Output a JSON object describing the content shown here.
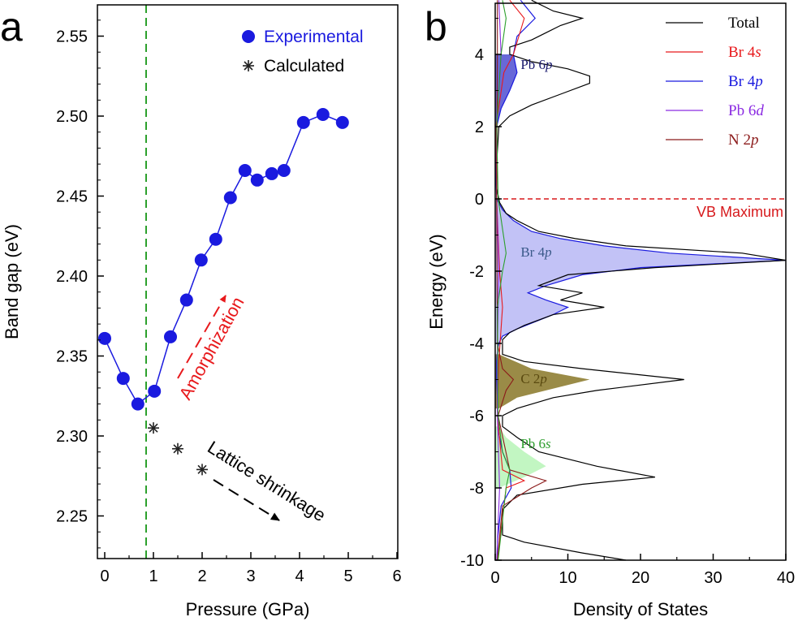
{
  "chart_data": [
    {
      "type": "scatter",
      "panel_label": "a",
      "xlabel": "Pressure (GPa)",
      "ylabel": "Band gap (eV)",
      "xlim": [
        0,
        6
      ],
      "ylim": [
        2.22,
        2.57
      ],
      "xticks": [
        "0",
        "1",
        "2",
        "3",
        "4",
        "5",
        "6"
      ],
      "yticks": [
        "2.25",
        "2.30",
        "2.35",
        "2.40",
        "2.45",
        "2.50",
        "2.55"
      ],
      "vertical_line_x": 0.85,
      "legend": "top-right",
      "series": [
        {
          "name": "Experimental",
          "color": "#1a1adf",
          "marker": "filled-circle",
          "connected": true,
          "x": [
            0.0,
            0.38,
            0.68,
            1.02,
            1.35,
            1.68,
            1.98,
            2.28,
            2.58,
            2.88,
            3.13,
            3.43,
            3.68,
            4.08,
            4.48,
            4.88
          ],
          "y": [
            2.361,
            2.336,
            2.32,
            2.328,
            2.362,
            2.385,
            2.41,
            2.423,
            2.449,
            2.466,
            2.46,
            2.464,
            2.466,
            2.496,
            2.501,
            2.496
          ]
        },
        {
          "name": "Calculated",
          "color": "#222222",
          "marker": "asterisk",
          "connected": false,
          "x": [
            1.0,
            1.5,
            2.0
          ],
          "y": [
            2.305,
            2.292,
            2.279
          ]
        }
      ],
      "annotations": [
        {
          "text": "Amorphization",
          "color": "#e8191c"
        },
        {
          "text": "Lattice shrinkage",
          "color": "#000000"
        }
      ]
    },
    {
      "type": "line",
      "panel_label": "b",
      "xlabel": "Density of States",
      "ylabel": "Energy (eV)",
      "xlim": [
        0,
        40
      ],
      "ylim": [
        -10,
        5.5
      ],
      "xticks": [
        "0",
        "10",
        "20",
        "30",
        "40"
      ],
      "yticks": [
        "4",
        "2",
        "0",
        "-2",
        "-4",
        "-6",
        "-8",
        "-10"
      ],
      "legend": "top-right",
      "fermi_line": {
        "y": 0,
        "label": "VB Maximum",
        "color": "#d7191c"
      },
      "legend_entries": [
        {
          "name": "Total",
          "main": "Total",
          "sub": "",
          "color": "#000000"
        },
        {
          "name": "Br 4s",
          "main": "Br 4",
          "sub": "s",
          "color": "#e8191c"
        },
        {
          "name": "Br 4p",
          "main": "Br 4",
          "sub": "p",
          "color": "#1a1adf"
        },
        {
          "name": "Pb 6d",
          "main": "Pb 6",
          "sub": "d",
          "color": "#8b2be2"
        },
        {
          "name": "N 2p",
          "main": "N 2",
          "sub": "p",
          "color": "#8b1a1a"
        }
      ],
      "region_labels": [
        {
          "name": "Pb 6p",
          "main": "Pb 6",
          "sub": "p",
          "color": "#1a1a6e",
          "x": 3.5,
          "y": 3.6
        },
        {
          "name": "Br 4p",
          "main": "Br 4",
          "sub": "p",
          "color": "#3b5a8a",
          "x": 3.5,
          "y": -1.6
        },
        {
          "name": "C 2p",
          "main": "C 2",
          "sub": "p",
          "color": "#5a4a10",
          "x": 3.5,
          "y": -5.1
        },
        {
          "name": "Pb 6s",
          "main": "Pb 6",
          "sub": "s",
          "color": "#2e9e2e",
          "x": 3.5,
          "y": -6.9
        }
      ],
      "series": [
        {
          "name": "Total",
          "color": "#000000",
          "energy": [
            -10,
            -9.8,
            -9.5,
            -9.3,
            -8.6,
            -8.2,
            -7.9,
            -7.7,
            -7.4,
            -7.0,
            -6.6,
            -6.3,
            -6.0,
            -5.8,
            -5.5,
            -5.3,
            -5.0,
            -4.7,
            -4.5,
            -4.3,
            -4.1,
            -3.9,
            -3.7,
            -3.5,
            -3.2,
            -3.0,
            -2.8,
            -2.6,
            -2.4,
            -2.1,
            -1.9,
            -1.7,
            -1.5,
            -1.3,
            -1.1,
            -0.9,
            -0.6,
            -0.4,
            -0.1,
            0.3,
            1.0,
            2.0,
            2.3,
            2.6,
            2.9,
            3.2,
            3.4,
            3.6,
            3.8,
            4.0,
            4.2,
            4.4,
            4.6,
            4.8,
            5.0,
            5.2,
            5.5
          ],
          "dos": [
            18,
            12,
            4,
            1,
            1,
            3,
            12,
            22,
            14,
            6,
            3,
            1,
            1,
            3,
            8,
            14,
            26,
            12,
            4,
            1,
            1,
            1,
            2,
            4,
            8,
            15,
            9,
            12,
            6,
            10,
            22,
            40,
            34,
            18,
            11,
            6,
            3,
            1.5,
            0.6,
            0.2,
            0.2,
            0.5,
            2,
            5,
            9,
            13,
            13,
            10,
            5,
            2,
            2,
            5,
            7,
            9,
            12,
            8,
            5
          ]
        },
        {
          "name": "Br 4p",
          "color": "#1a1adf",
          "energy": [
            -10,
            -9.5,
            -8.5,
            -8.0,
            -7.5,
            -7.0,
            -6.5,
            -6.0,
            -5.5,
            -5.0,
            -4.5,
            -4.2,
            -4.0,
            -3.8,
            -3.6,
            -3.4,
            -3.2,
            -3.0,
            -2.8,
            -2.6,
            -2.4,
            -2.1,
            -1.9,
            -1.7,
            -1.5,
            -1.3,
            -1.1,
            -0.9,
            -0.6,
            -0.3,
            0.0,
            0.5,
            1.0,
            2.0,
            2.5,
            3.0,
            3.5,
            4.0,
            4.5,
            5.0,
            5.5
          ],
          "dos": [
            0.3,
            0.3,
            0.8,
            2.2,
            2.0,
            1.0,
            0.5,
            0.4,
            0.3,
            0.2,
            0.2,
            0.3,
            0.5,
            1.0,
            3.0,
            5.5,
            8.0,
            10.0,
            7.0,
            4.5,
            7.0,
            12,
            20,
            40,
            24,
            15,
            9,
            5,
            2.5,
            1.0,
            0.2,
            0.1,
            0.1,
            0.2,
            0.8,
            2.0,
            3.0,
            2.5,
            3.0,
            5.5,
            3.5
          ]
        }
      ]
    }
  ]
}
